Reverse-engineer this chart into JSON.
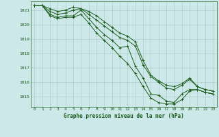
{
  "title": "Graphe pression niveau de la mer (hPa)",
  "bg_color": "#cce8e8",
  "grid_color": "#b0cccc",
  "line_color": "#1a5c1a",
  "xlim": [
    -0.5,
    23.5
  ],
  "ylim": [
    1014.3,
    1021.6
  ],
  "yticks": [
    1015,
    1016,
    1017,
    1018,
    1019,
    1020,
    1021
  ],
  "xticks": [
    0,
    1,
    2,
    3,
    4,
    5,
    6,
    7,
    8,
    9,
    10,
    11,
    12,
    13,
    14,
    15,
    16,
    17,
    18,
    19,
    20,
    21,
    22,
    23
  ],
  "series": [
    [
      1021.3,
      1021.3,
      1020.7,
      1020.5,
      1020.6,
      1020.6,
      1021.0,
      1020.4,
      1019.8,
      1019.3,
      1018.9,
      1018.4,
      1018.5,
      1017.1,
      1016.3,
      1015.2,
      1015.1,
      1014.7,
      1014.6,
      1015.2,
      1015.5,
      1015.5,
      1015.3,
      1015.2
    ],
    [
      1021.3,
      1021.3,
      1020.9,
      1020.7,
      1020.8,
      1021.0,
      1021.1,
      1020.7,
      1020.3,
      1019.9,
      1019.5,
      1019.1,
      1018.9,
      1018.5,
      1017.2,
      1016.4,
      1016.0,
      1015.6,
      1015.5,
      1015.8,
      1016.2,
      1015.7,
      1015.5,
      1015.4
    ],
    [
      1021.3,
      1021.3,
      1021.1,
      1020.9,
      1021.0,
      1021.2,
      1021.1,
      1020.9,
      1020.6,
      1020.2,
      1019.8,
      1019.4,
      1019.2,
      1018.8,
      1017.5,
      1016.5,
      1016.1,
      1015.8,
      1015.7,
      1015.9,
      1016.3,
      1015.7,
      1015.5,
      1015.4
    ],
    [
      1021.3,
      1021.3,
      1020.6,
      1020.4,
      1020.5,
      1020.5,
      1020.7,
      1020.1,
      1019.4,
      1018.9,
      1018.4,
      1017.8,
      1017.3,
      1016.6,
      1015.7,
      1014.9,
      1014.6,
      1014.5,
      1014.5,
      1014.8,
      1015.4,
      1015.5,
      1015.3,
      1015.2
    ]
  ]
}
